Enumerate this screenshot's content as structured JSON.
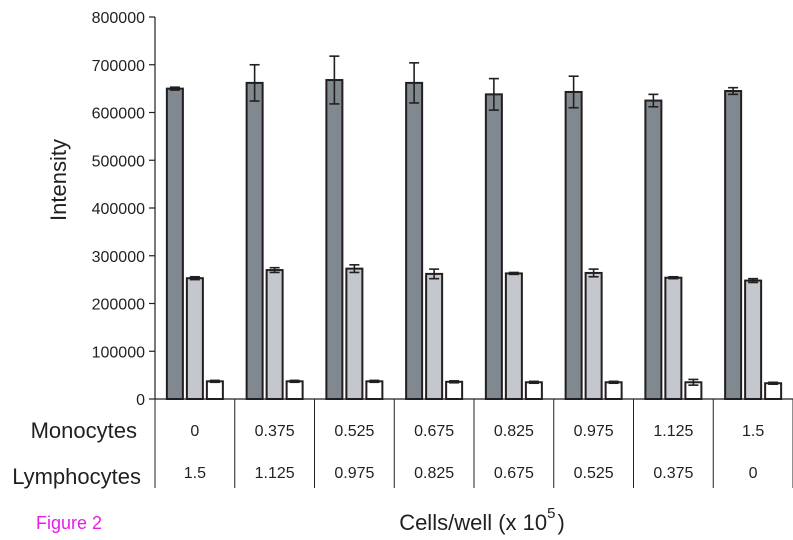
{
  "figure_label": "Figure 2",
  "chart_data": {
    "type": "bar",
    "title": "",
    "ylabel": "Intensity",
    "xlabel": "Cells/well (x 10",
    "xlabel_exponent": "5",
    "xlabel_suffix": ")",
    "ylim": [
      0,
      800000
    ],
    "yticks": [
      "0",
      "100000",
      "200000",
      "300000",
      "400000",
      "500000",
      "600000",
      "700000",
      "800000"
    ],
    "grid": false,
    "categories": [
      "0 / 1.5",
      "0.375 / 1.125",
      "0.525 / 0.975",
      "0.675 / 0.825",
      "0.825 / 0.675",
      "0.975 / 0.525",
      "1.125 / 0.375",
      "1.5 / 0"
    ],
    "row_labels": {
      "monocytes": "Monocytes",
      "lymphocytes": "Lymphocytes"
    },
    "monocytes": [
      "0",
      "0.375",
      "0.525",
      "0.675",
      "0.825",
      "0.975",
      "1.125",
      "1.5"
    ],
    "lymphocytes": [
      "1.5",
      "1.125",
      "0.975",
      "0.825",
      "0.675",
      "0.525",
      "0.375",
      "0"
    ],
    "series": [
      {
        "color": "#808890",
        "values": [
          650000,
          662000,
          668000,
          662000,
          638000,
          643000,
          625000,
          645000
        ],
        "errors": [
          3000,
          38000,
          50000,
          42000,
          33000,
          33000,
          13000,
          7000
        ]
      },
      {
        "color": "#c4c8ce",
        "values": [
          253000,
          270000,
          273000,
          262000,
          263000,
          264000,
          254000,
          248000
        ],
        "errors": [
          3000,
          5000,
          8000,
          10000,
          2000,
          8000,
          2000,
          4000
        ]
      },
      {
        "color": "#ffffff",
        "values": [
          37000,
          37000,
          37000,
          36000,
          35000,
          35000,
          35000,
          33000
        ],
        "errors": [
          2000,
          2000,
          2000,
          2000,
          2000,
          2000,
          6000,
          2000
        ]
      }
    ]
  }
}
